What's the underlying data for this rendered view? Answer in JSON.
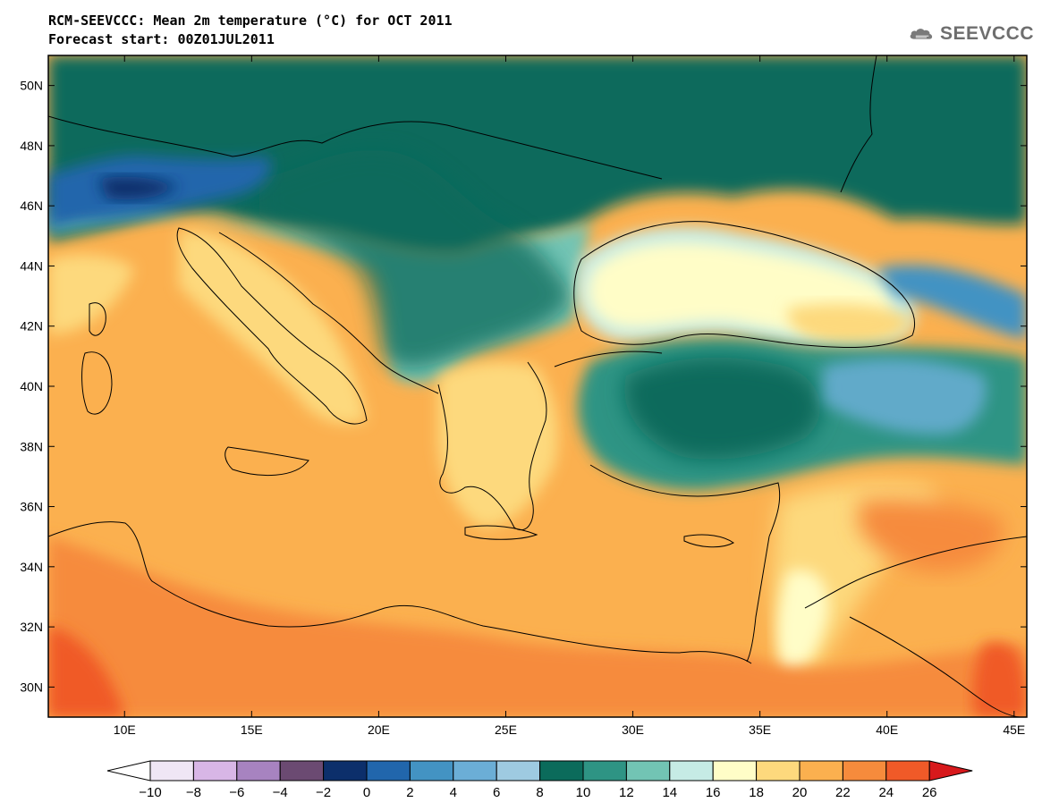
{
  "header": {
    "title": "RCM-SEEVCCC: Mean 2m temperature (°C) for OCT 2011",
    "subtitle": "Forecast start: 00Z01JUL2011",
    "logo_text": "SEEVCCC"
  },
  "map": {
    "projection": "lat-lon",
    "lon_range": [
      7,
      45.5
    ],
    "lat_range": [
      29,
      51
    ],
    "lat_ticks": [
      {
        "value": 30,
        "label": "30N"
      },
      {
        "value": 32,
        "label": "32N"
      },
      {
        "value": 34,
        "label": "34N"
      },
      {
        "value": 36,
        "label": "36N"
      },
      {
        "value": 38,
        "label": "38N"
      },
      {
        "value": 40,
        "label": "40N"
      },
      {
        "value": 42,
        "label": "42N"
      },
      {
        "value": 44,
        "label": "44N"
      },
      {
        "value": 46,
        "label": "46N"
      },
      {
        "value": 48,
        "label": "48N"
      },
      {
        "value": 50,
        "label": "50N"
      }
    ],
    "lon_ticks": [
      {
        "value": 10,
        "label": "10E"
      },
      {
        "value": 15,
        "label": "15E"
      },
      {
        "value": 20,
        "label": "20E"
      },
      {
        "value": 25,
        "label": "25E"
      },
      {
        "value": 30,
        "label": "30E"
      },
      {
        "value": 35,
        "label": "35E"
      },
      {
        "value": 40,
        "label": "40E"
      },
      {
        "value": 45,
        "label": "45E"
      }
    ],
    "field": "mean 2m temperature",
    "regions": {
      "north_land": 10,
      "alps": 4,
      "caucasus": 6,
      "black_sea": 18,
      "mediterranean_sea": 21,
      "italy": 19,
      "greece": 19,
      "anatolia_plateau": 11,
      "north_africa": 22,
      "middle_east": 21
    }
  },
  "colorbar": {
    "levels": [
      -10,
      -8,
      -6,
      -4,
      -2,
      0,
      2,
      4,
      6,
      8,
      10,
      12,
      14,
      16,
      18,
      20,
      22,
      24,
      26
    ],
    "labels": [
      "−10",
      "−8",
      "−6",
      "−4",
      "−2",
      "0",
      "2",
      "4",
      "6",
      "8",
      "10",
      "12",
      "14",
      "16",
      "18",
      "20",
      "22",
      "24",
      "26"
    ],
    "under_color": "#ffffff",
    "over_color": "#d7191c",
    "colors": [
      "#efe6f5",
      "#d8b6e6",
      "#a783c0",
      "#6b4a72",
      "#0c2f6b",
      "#2166ac",
      "#4393c3",
      "#6baed6",
      "#9ecae1",
      "#0b6b5b",
      "#2e9484",
      "#72c4b4",
      "#c6ebe5",
      "#fffdc7",
      "#fdd97d",
      "#fbb04f",
      "#f68b3c",
      "#f05a28"
    ]
  }
}
